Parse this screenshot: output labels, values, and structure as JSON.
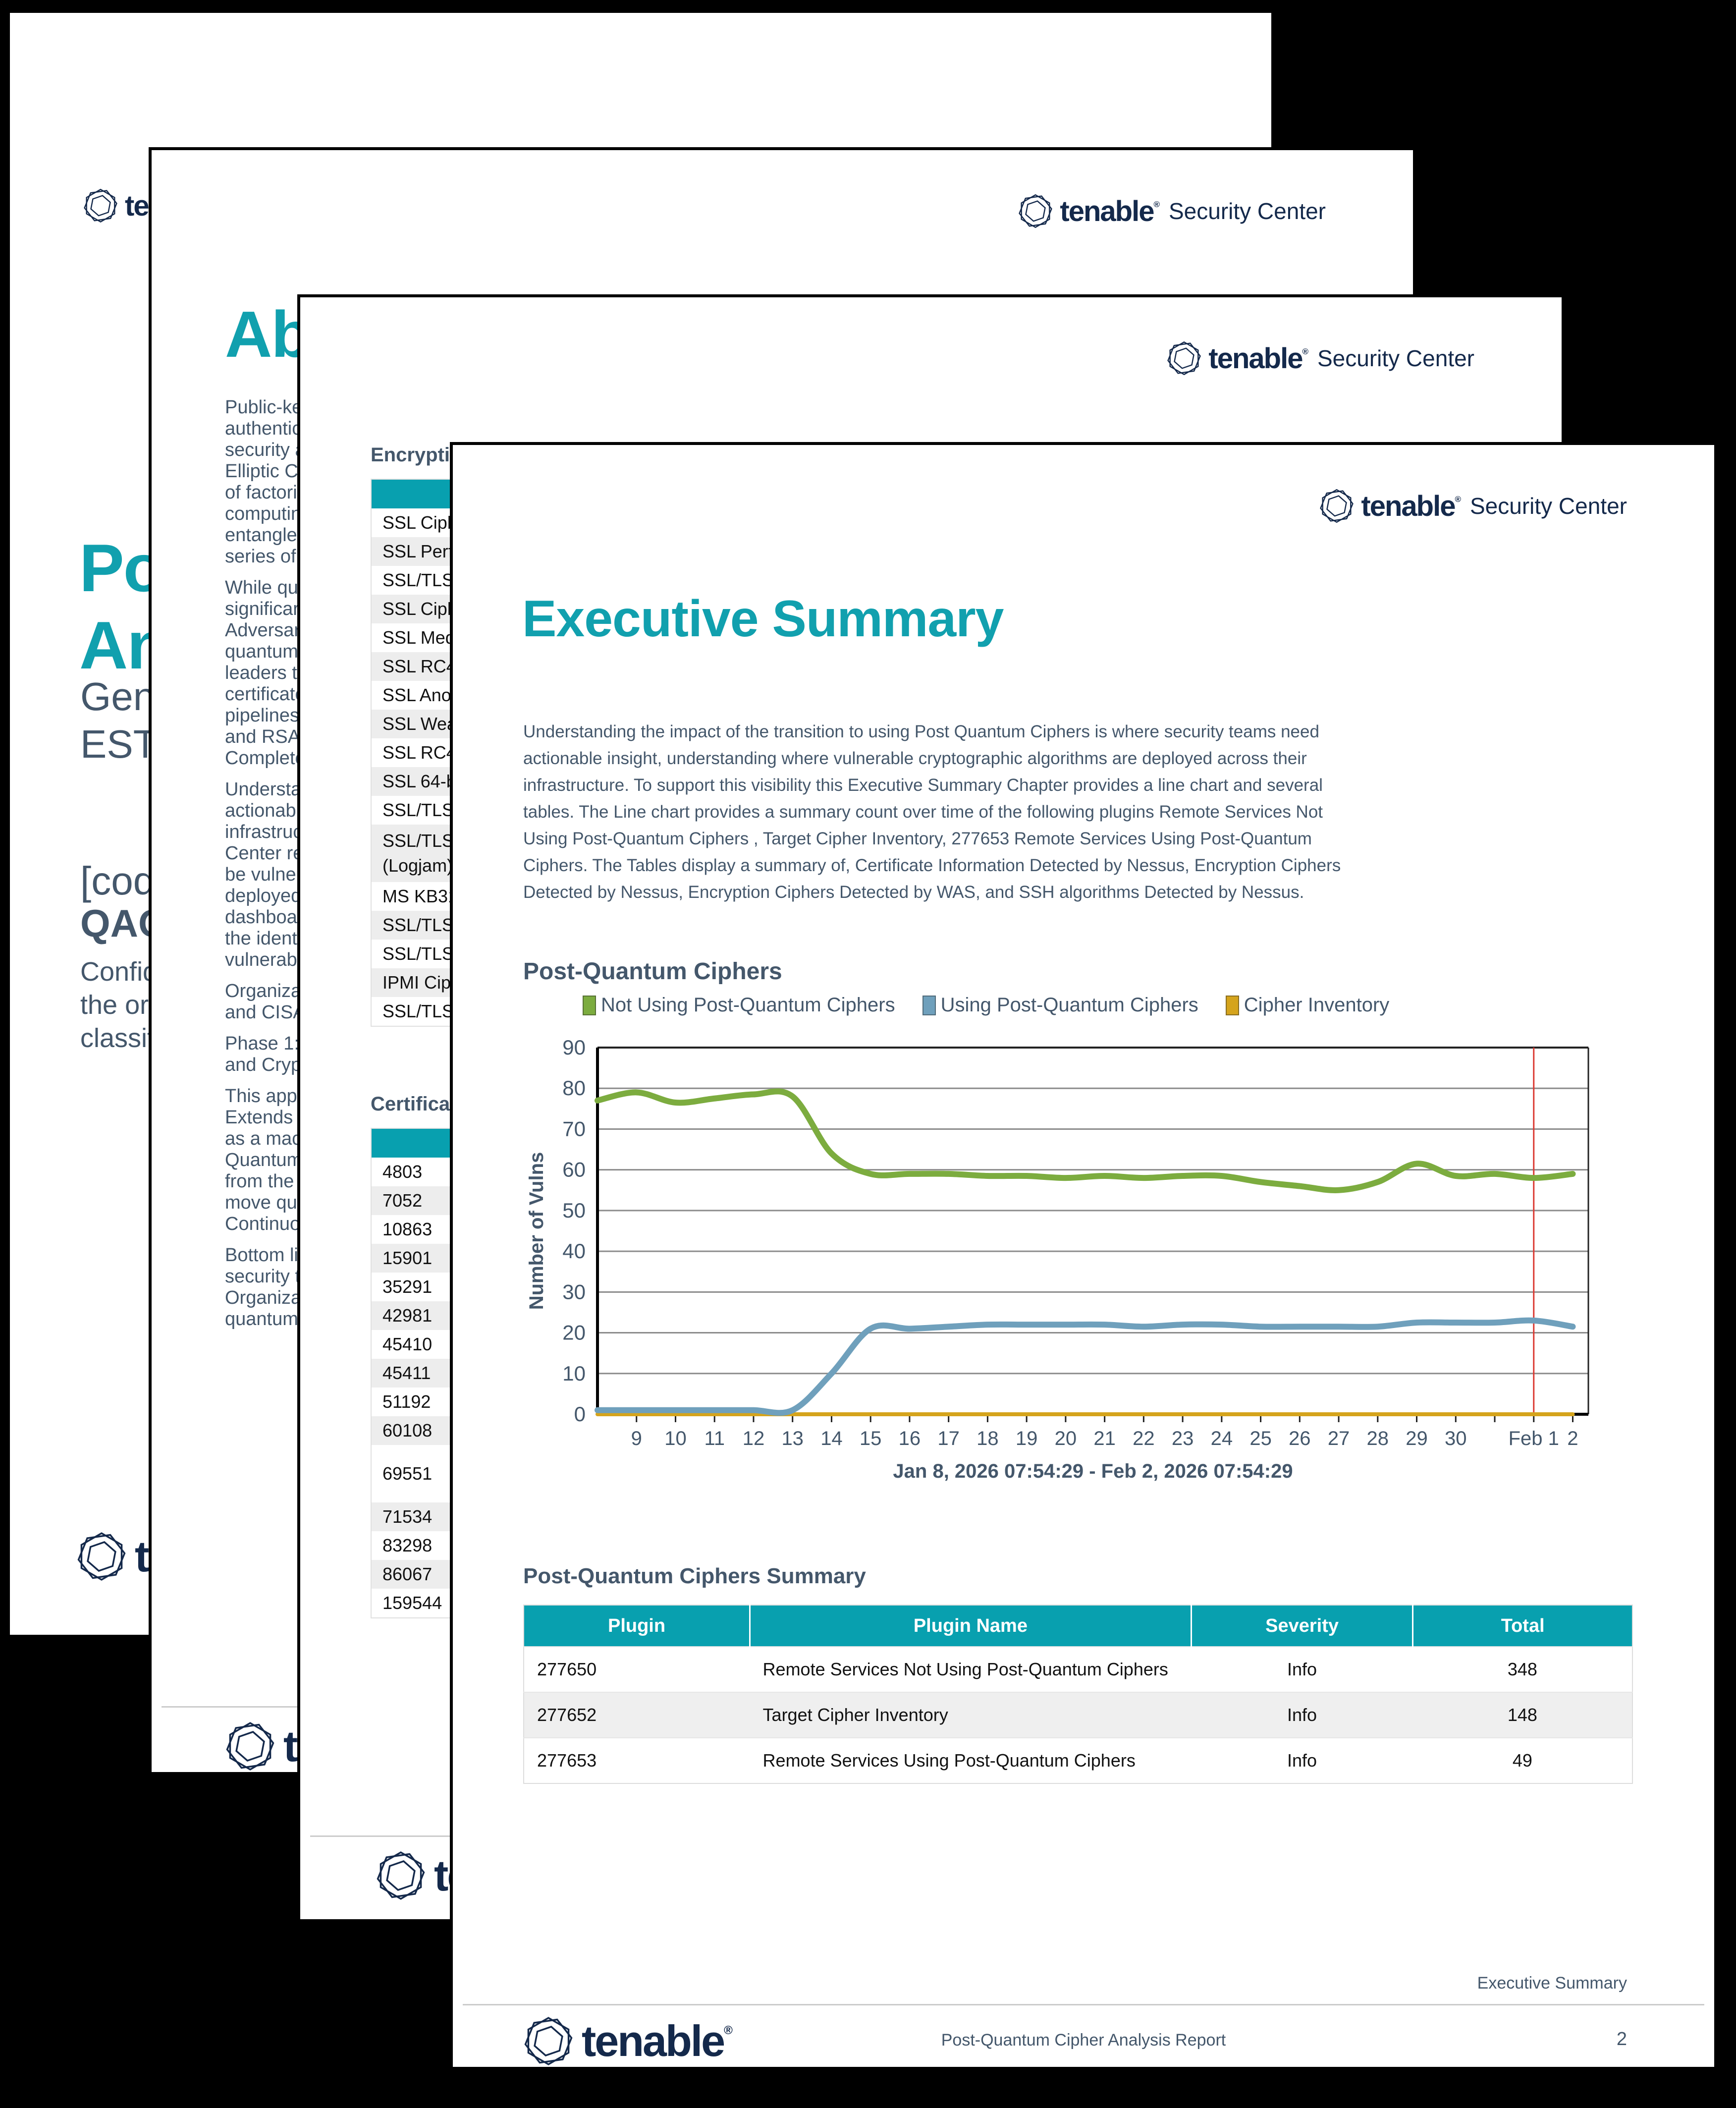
{
  "brand": {
    "wordmark": "tenable",
    "registered": "®",
    "suffix": "Security Center"
  },
  "colors": {
    "accent_teal": "#11A0AE",
    "table_header_teal": "#08A0AF",
    "slate_text": "#44576B",
    "logo_navy": "#14294B",
    "line_green": "#7CAC3F",
    "line_blue": "#6FA0BC",
    "line_gold": "#D5A41C",
    "marker_red": "#DB3A33",
    "grid_gray": "#8C8C8C",
    "zebra_gray": "#EDEDED"
  },
  "pages": {
    "cover": {
      "title_lines": [
        "Po",
        "An"
      ],
      "subtitle_lines": [
        "Gen",
        "EST"
      ],
      "meta_line1": "[cody",
      "meta_line2": "QAO",
      "body_lines": [
        "Confide",
        "the orga",
        "classific"
      ]
    },
    "about": {
      "title_fragment": "Ab",
      "paragraphs": [
        [
          "Public-ke",
          "authentic",
          "security a",
          "Elliptic C",
          "of factori",
          "computin",
          "entangle",
          "series of"
        ],
        [
          "While qu",
          "significar",
          "Adversar",
          "quantum",
          "leaders t",
          "certificate",
          "pipelines",
          "and RSA",
          "Complete"
        ],
        [
          "Understa",
          "actionabl",
          "infrastruc",
          "Center re",
          "be vulner",
          "deployed",
          "dashboar",
          "the identi",
          "vulnerabl"
        ],
        [
          "Organiza",
          "and CISA"
        ],
        [
          "Phase 1:",
          "and Cryp"
        ],
        [
          "This app",
          "Extends",
          "as a mac",
          "Quantum",
          "from the",
          "move qui",
          "Continuo"
        ],
        [
          "Bottom li",
          "security t",
          "Organiza",
          "quantum"
        ]
      ]
    },
    "tables_page": {
      "encryption_heading_fragment": "Encrypti",
      "encryption_rows": [
        "SSL Ciph",
        "SSL Perf",
        "SSL/TLS",
        "SSL Ciph",
        "SSL Med",
        "SSL RC4",
        "SSL Ano",
        "SSL Wea",
        "SSL RC4",
        "SSL 64-b",
        "SSL/TLS",
        "SSL/TLS\n(Logjam)",
        "MS KB31",
        "SSL/TLS",
        "SSL/TLS",
        "IPMI Ciph",
        "SSL/TLS"
      ],
      "certificate_heading_fragment": "Certifica",
      "certificate_rows": [
        "4803",
        "7052",
        "10863",
        "15901",
        "35291",
        "42981",
        "45410",
        "45411",
        "51192",
        "60108",
        "69551",
        "71534",
        "83298",
        "86067",
        "159544"
      ]
    },
    "exec": {
      "title": "Executive Summary",
      "paragraph_lines": [
        "Understanding the impact of the transition to using Post Quantum Ciphers is where security teams need",
        "actionable insight, understanding where vulnerable cryptographic algorithms are deployed across their",
        "infrastructure. To support this visibility this Executive Summary Chapter provides a line chart and several",
        "tables. The Line chart provides a summary count over time of the following plugins Remote Services Not",
        "Using Post-Quantum Ciphers , Target Cipher Inventory, 277653 Remote Services Using Post-Quantum",
        "Ciphers. The Tables display a summary of, Certificate Information Detected by Nessus, Encryption Ciphers",
        "Detected by Nessus, Encryption Ciphers Detected by WAS, and SSH algorithms Detected by Nessus."
      ],
      "chart_heading": "Post-Quantum Ciphers",
      "summary_heading": "Post-Quantum Ciphers Summary",
      "summary_table": {
        "headers": [
          "Plugin",
          "Plugin Name",
          "Severity",
          "Total"
        ],
        "rows": [
          [
            "277650",
            "Remote Services Not Using Post-Quantum Ciphers",
            "Info",
            "348"
          ],
          [
            "277652",
            "Target Cipher Inventory",
            "Info",
            "148"
          ],
          [
            "277653",
            "Remote Services Using Post-Quantum Ciphers",
            "Info",
            "49"
          ]
        ]
      },
      "footer": {
        "section": "Executive Summary",
        "report": "Post-Quantum Cipher Analysis Report",
        "page_number": "2"
      }
    }
  },
  "chart_data": {
    "type": "line",
    "title": "Post-Quantum Ciphers",
    "xlabel": "Jan 8, 2026 07:54:29 - Feb 2, 2026 07:54:29",
    "ylabel": "Number of Vulns",
    "ylim": [
      0,
      90
    ],
    "ytick_interval": 10,
    "grid": true,
    "legend_position": "top",
    "x_labels": [
      "",
      "9",
      "10",
      "11",
      "12",
      "13",
      "14",
      "15",
      "16",
      "17",
      "18",
      "19",
      "20",
      "21",
      "22",
      "23",
      "24",
      "25",
      "26",
      "27",
      "28",
      "29",
      "30",
      "",
      "Feb 1",
      "2"
    ],
    "series": [
      {
        "name": "Not Using Post-Quantum Ciphers",
        "color": "#7CAC3F",
        "values": [
          77,
          79,
          76.5,
          77.5,
          78.5,
          78,
          64,
          59,
          59,
          59,
          58.5,
          58.5,
          58,
          58.5,
          58,
          58.5,
          58.5,
          57,
          56,
          55,
          57,
          61.5,
          58.5,
          59,
          58,
          59
        ]
      },
      {
        "name": "Using Post-Quantum Ciphers",
        "color": "#6FA0BC",
        "values": [
          1,
          1,
          1,
          1,
          1,
          1,
          10,
          21,
          21,
          21.5,
          22,
          22,
          22,
          22,
          21.5,
          22,
          22,
          21.5,
          21.5,
          21.5,
          21.5,
          22.5,
          22.5,
          22.5,
          23,
          21.5
        ]
      },
      {
        "name": "Cipher Inventory",
        "color": "#D5A41C",
        "values": [
          0,
          0,
          0,
          0,
          0,
          0,
          0,
          0,
          0,
          0,
          0,
          0,
          0,
          0,
          0,
          0,
          0,
          0,
          0,
          0,
          0,
          0,
          0,
          0,
          0,
          0
        ]
      }
    ],
    "marker_line": {
      "color": "#DB3A33",
      "x_index": 24
    }
  }
}
